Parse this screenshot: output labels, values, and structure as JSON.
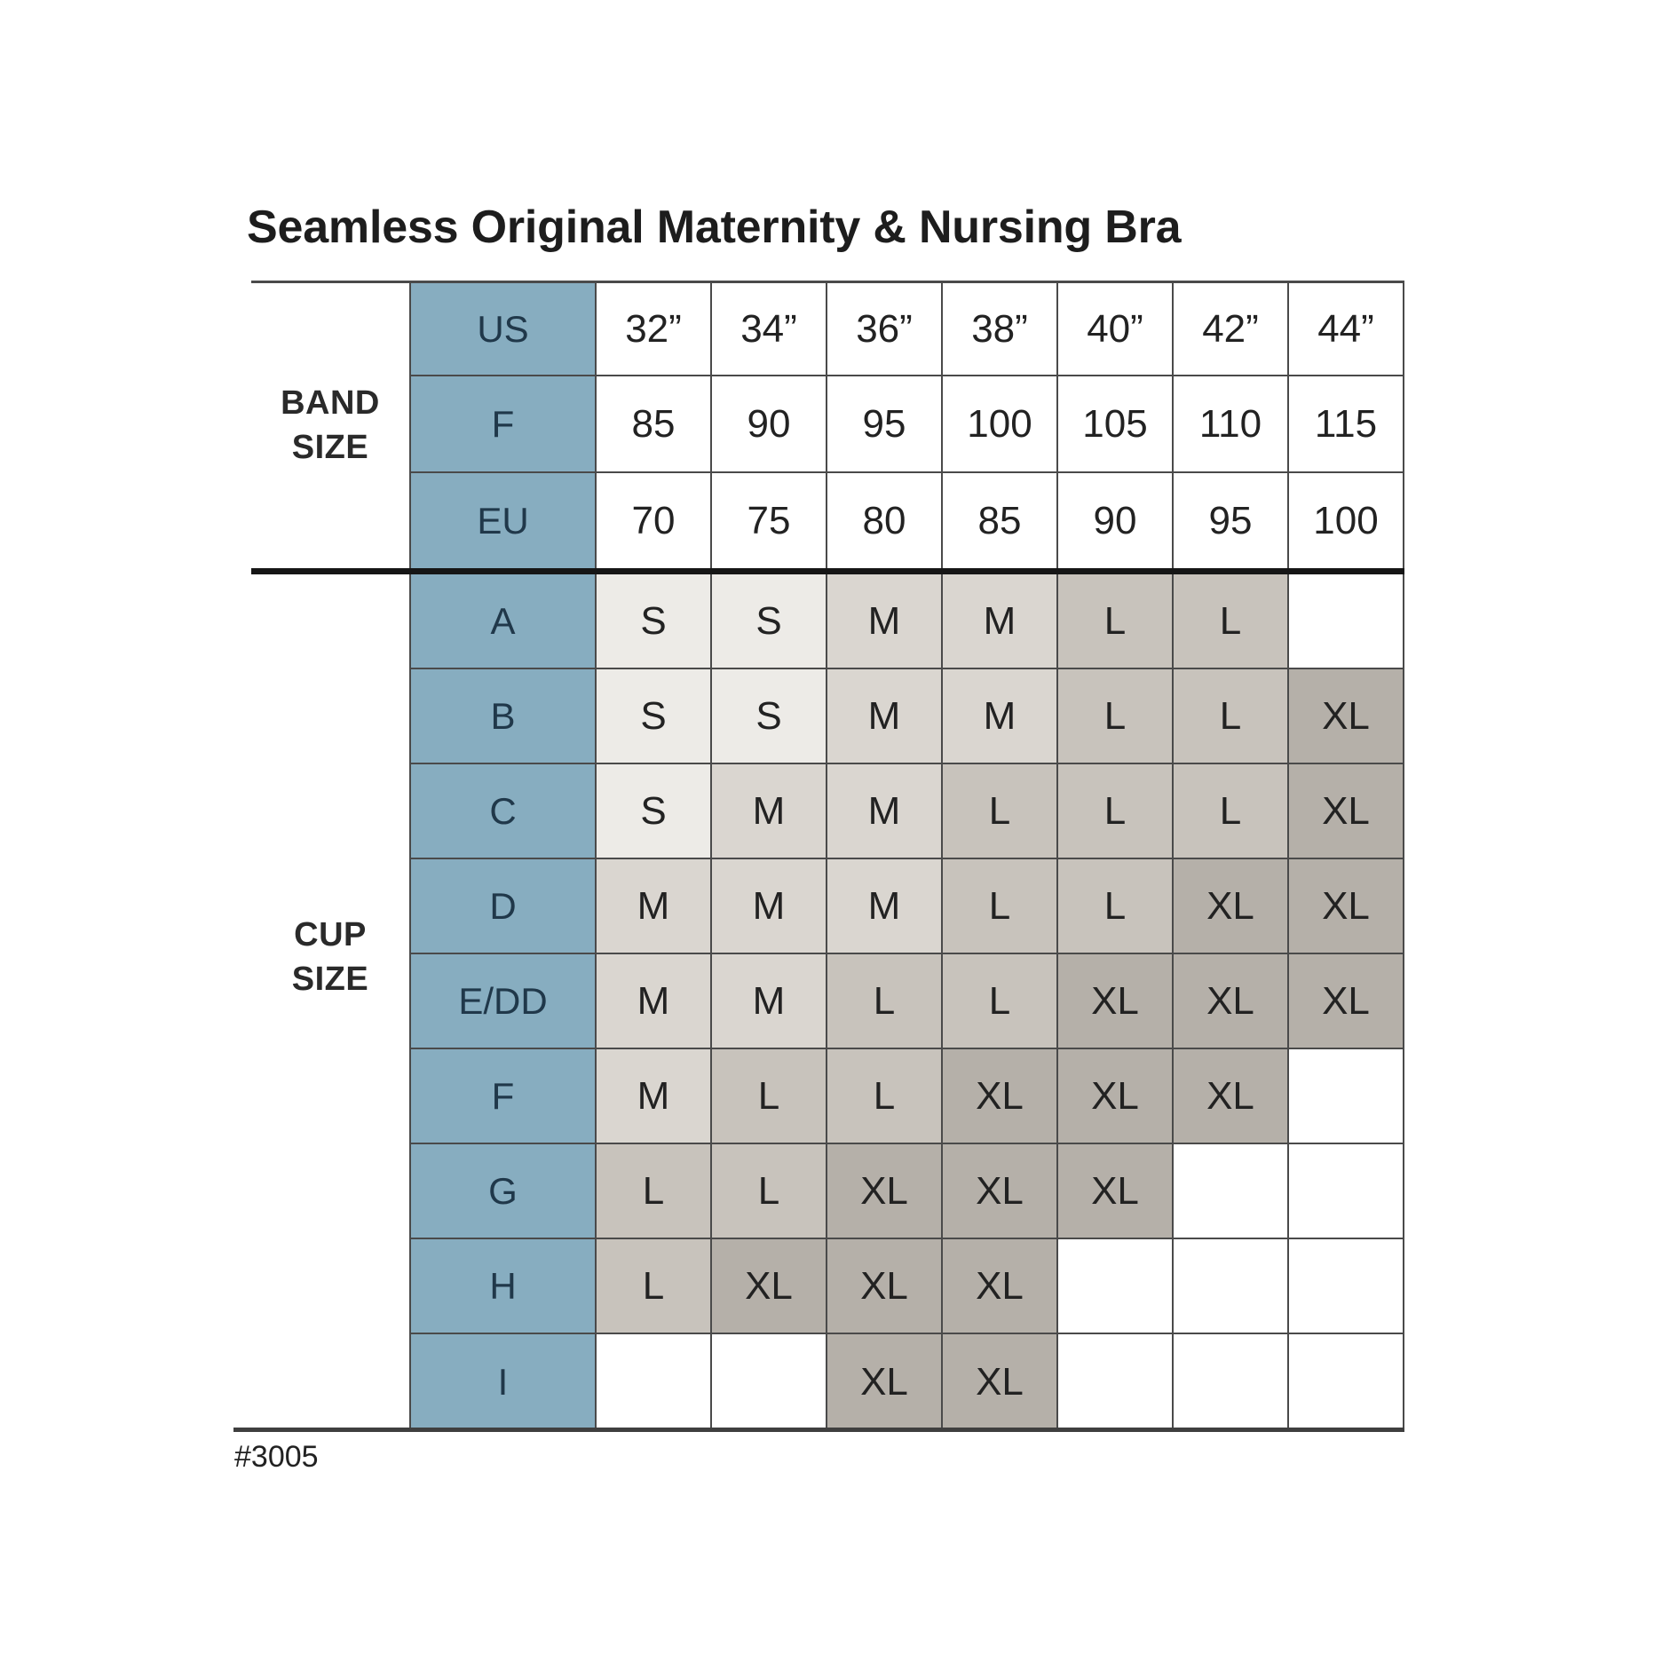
{
  "title": "Seamless Original Maternity & Nursing Bra",
  "product_code": "#3005",
  "band_section": {
    "label_lines": [
      "BAND",
      "SIZE"
    ]
  },
  "cup_section": {
    "label_lines": [
      "CUP",
      "SIZE"
    ]
  },
  "chart_data": {
    "type": "table",
    "title": "Seamless Original Maternity & Nursing Bra",
    "band_rows": [
      {
        "label": "US",
        "values": [
          "32”",
          "34”",
          "36”",
          "38”",
          "40”",
          "42”",
          "44”"
        ]
      },
      {
        "label": "F",
        "values": [
          "85",
          "90",
          "95",
          "100",
          "105",
          "110",
          "115"
        ]
      },
      {
        "label": "EU",
        "values": [
          "70",
          "75",
          "80",
          "85",
          "90",
          "95",
          "100"
        ]
      }
    ],
    "cup_rows": [
      {
        "label": "A",
        "values": [
          "S",
          "S",
          "M",
          "M",
          "L",
          "L",
          ""
        ]
      },
      {
        "label": "B",
        "values": [
          "S",
          "S",
          "M",
          "M",
          "L",
          "L",
          "XL"
        ]
      },
      {
        "label": "C",
        "values": [
          "S",
          "M",
          "M",
          "L",
          "L",
          "L",
          "XL"
        ]
      },
      {
        "label": "D",
        "values": [
          "M",
          "M",
          "M",
          "L",
          "L",
          "XL",
          "XL"
        ]
      },
      {
        "label": "E/DD",
        "values": [
          "M",
          "M",
          "L",
          "L",
          "XL",
          "XL",
          "XL"
        ]
      },
      {
        "label": "F",
        "values": [
          "M",
          "L",
          "L",
          "XL",
          "XL",
          "XL",
          ""
        ]
      },
      {
        "label": "G",
        "values": [
          "L",
          "L",
          "XL",
          "XL",
          "XL",
          "",
          ""
        ]
      },
      {
        "label": "H",
        "values": [
          "L",
          "XL",
          "XL",
          "XL",
          "",
          "",
          ""
        ]
      },
      {
        "label": "I",
        "values": [
          "",
          "",
          "XL",
          "XL",
          "",
          "",
          ""
        ]
      }
    ],
    "size_shading_order_light_to_dark": [
      "S",
      "M",
      "L",
      "XL"
    ]
  },
  "colors": {
    "blue_header": "#87adc0",
    "header_text": "#20384a",
    "cell_text": "#222222",
    "title_text": "#1d1d1d",
    "size_s_bg": "#edebe7",
    "size_m_bg": "#dad6d0",
    "size_l_bg": "#c8c3bc",
    "size_xl_bg": "#b5b0a9",
    "empty_bg": "#ffffff",
    "grid_line": "#4a4a4a",
    "section_divider": "#161616",
    "bottom_line": "#3f3f3f"
  }
}
